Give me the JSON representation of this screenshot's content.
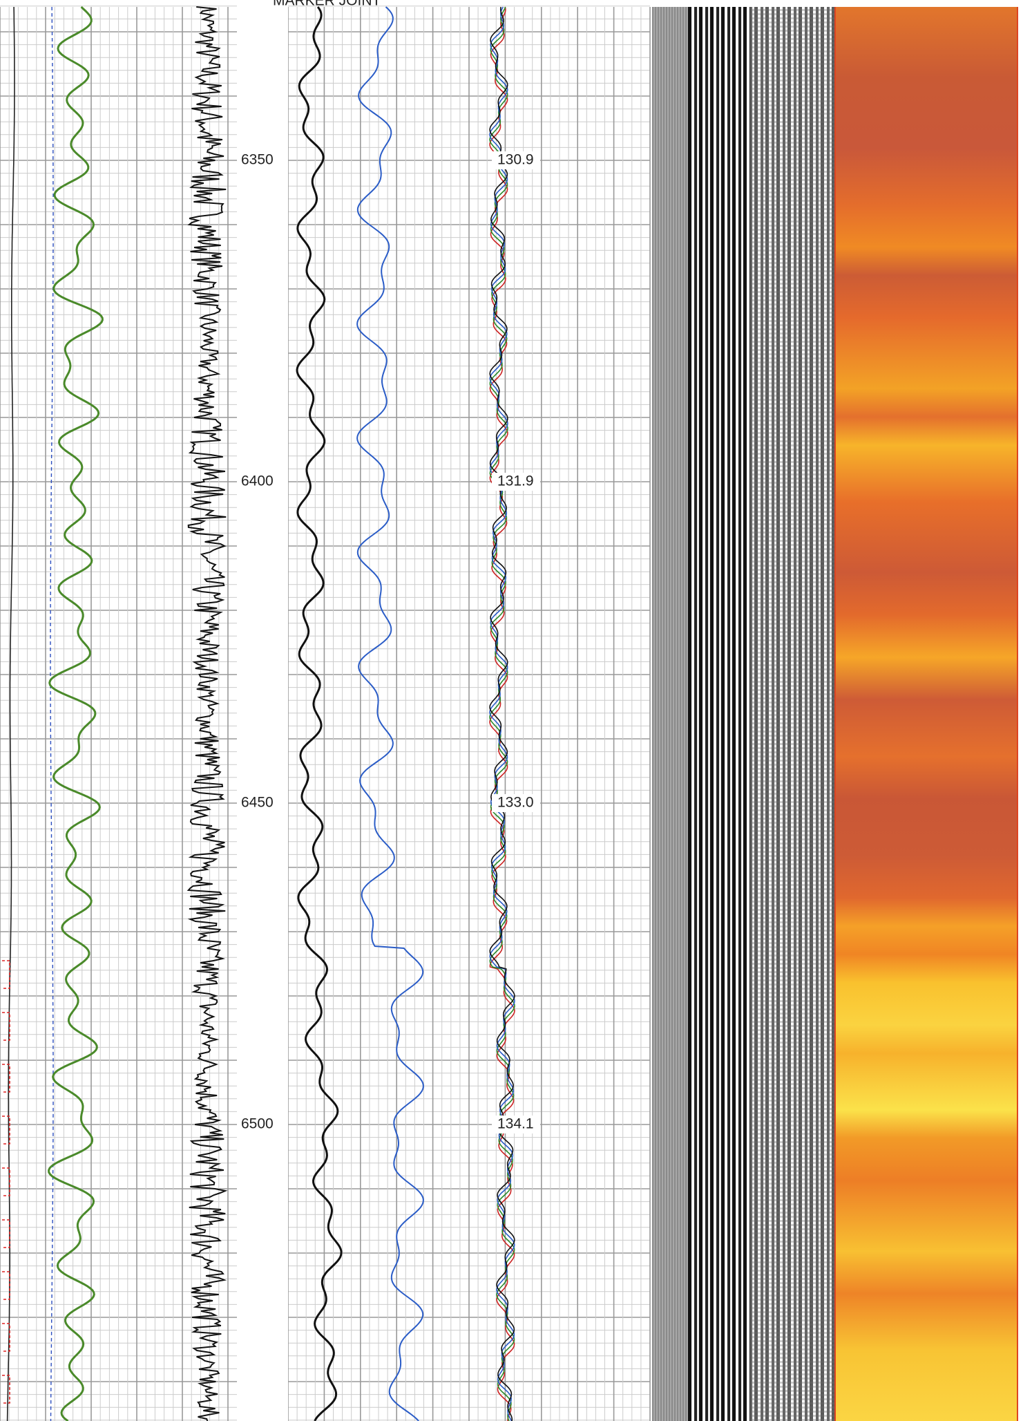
{
  "header": {
    "marker": "MARKER JOINT"
  },
  "depth_labels": [
    "6350",
    "6400",
    "6450",
    "6500"
  ],
  "time_labels": [
    "130.9",
    "131.9",
    "133.0",
    "134.1"
  ]
}
